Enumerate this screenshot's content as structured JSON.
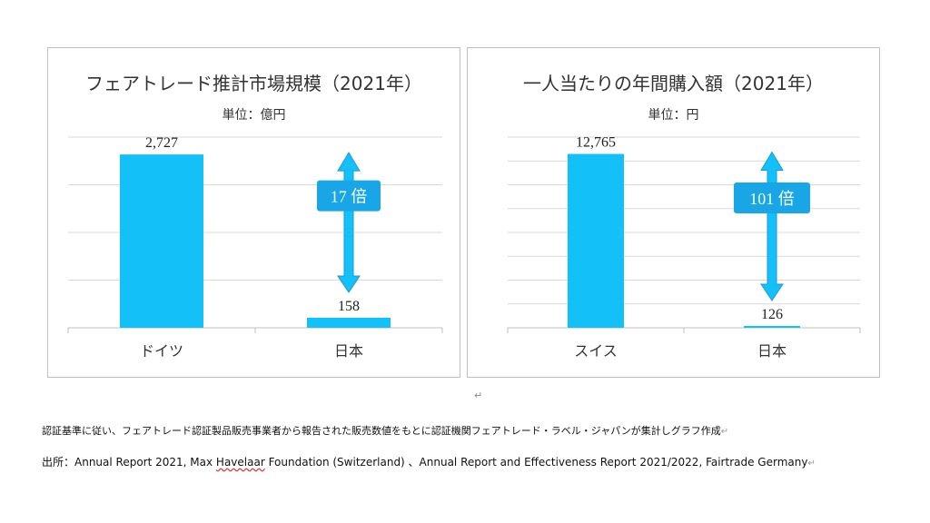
{
  "chart_data": [
    {
      "type": "bar",
      "title": "フェアトレード推計市場規模（2021年）",
      "unit": "単位：億円",
      "categories": [
        "ドイツ",
        "日本"
      ],
      "values": [
        2727,
        158
      ],
      "value_labels": [
        "2,727",
        "158"
      ],
      "ylim": [
        0,
        3000
      ],
      "grid": true,
      "bar_color": "#14c0f8",
      "annotation": "17 倍"
    },
    {
      "type": "bar",
      "title": "一人当たりの年間購入額（2021年）",
      "unit": "単位：円",
      "categories": [
        "スイス",
        "日本"
      ],
      "values": [
        12765,
        126
      ],
      "value_labels": [
        "12,765",
        "126"
      ],
      "ylim": [
        0,
        14000
      ],
      "grid": true,
      "bar_color": "#14c0f8",
      "annotation": "101 倍"
    }
  ],
  "arrow_color": "#1a9ad6",
  "cursor_mark": "↵",
  "footer": {
    "note": "認証基準に従い、フェアトレード認証製品販売事業者から報告された販売数値をもとに認証機関フェアトレード・ラベル・ジャパンが集計しグラフ作成",
    "source_prefix": "出所：Annual Report 2021, Max ",
    "source_squiggle": "Havelaar",
    "source_suffix": " Foundation (Switzerland) 、Annual Report and Effectiveness Report 2021/2022, Fairtrade Germany",
    "para_mark": "↵"
  }
}
